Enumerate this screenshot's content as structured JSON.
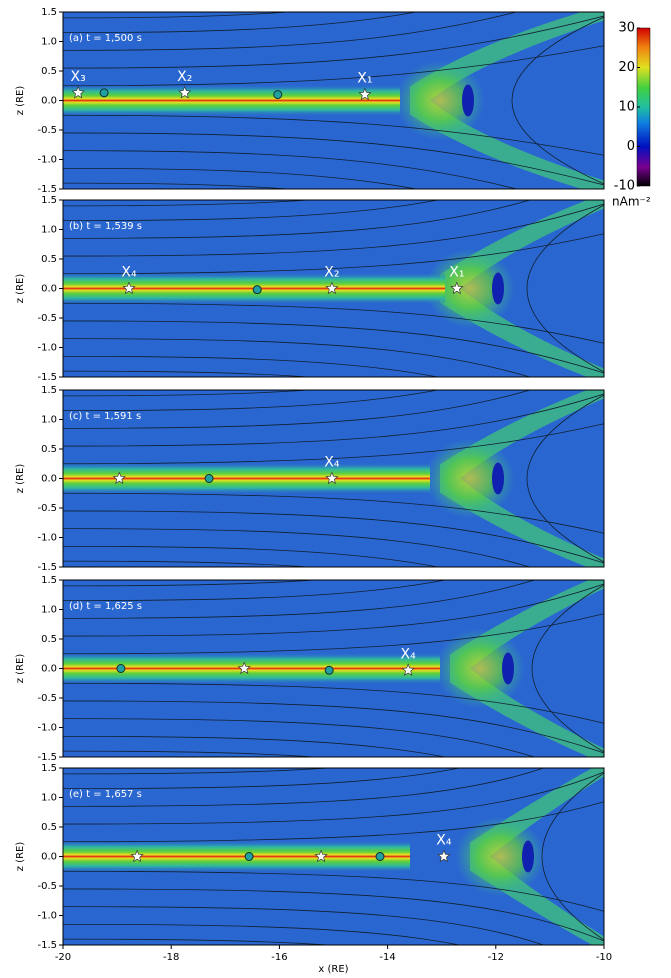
{
  "chart_data": [
    {
      "type": "field",
      "label": "(a) t = 1,500 s",
      "ylabel": "z (RE)",
      "xlim": [
        -20,
        -10
      ],
      "ylim": [
        -1.5,
        1.5
      ],
      "yticks": [
        {
          "value": -1.5,
          "label": "-1.5"
        },
        {
          "value": -1,
          "label": "-1.0"
        },
        {
          "value": -0.5,
          "label": "-0.5"
        },
        {
          "value": 0,
          "label": "0.0"
        },
        {
          "value": 0.5,
          "label": "0.5"
        },
        {
          "value": 1,
          "label": "1.0"
        },
        {
          "value": 1.5,
          "label": "1.5"
        }
      ],
      "stars": {
        "x": [
          -19.72,
          -17.75,
          -14.42
        ],
        "y": [
          0.13,
          0.13,
          0.1
        ],
        "labels": [
          "X₃",
          "X₂",
          "X₁"
        ]
      },
      "circles": {
        "x": [
          -19.24,
          -16.03
        ],
        "y": [
          0.13,
          0.1
        ]
      },
      "colorbar": {
        "lim": [
          -10,
          30
        ],
        "ticks": [
          30,
          20,
          10,
          0,
          -10
        ],
        "label": "nAm⁻²"
      }
    },
    {
      "type": "field",
      "label": "(b) t = 1,539 s",
      "ylabel": "z (RE)",
      "xlim": [
        -20,
        -10
      ],
      "ylim": [
        -1.5,
        1.5
      ],
      "yticks": [
        {
          "value": -1.5,
          "label": "-1.5"
        },
        {
          "value": -1,
          "label": "-1.0"
        },
        {
          "value": -0.5,
          "label": "-0.5"
        },
        {
          "value": 0,
          "label": "0.0"
        },
        {
          "value": 0.5,
          "label": "0.5"
        },
        {
          "value": 1,
          "label": "1.0"
        },
        {
          "value": 1.5,
          "label": "1.5"
        }
      ],
      "stars": {
        "x": [
          -18.78,
          -15.03,
          -12.72
        ],
        "y": [
          0,
          0,
          0
        ],
        "labels": [
          "X₄",
          "X₂",
          "X₁"
        ]
      },
      "circles": {
        "x": [
          -16.41
        ],
        "y": [
          -0.02
        ]
      }
    },
    {
      "type": "field",
      "label": "(c) t = 1,591 s",
      "ylabel": "z (RE)",
      "xlim": [
        -20,
        -10
      ],
      "ylim": [
        -1.5,
        1.5
      ],
      "yticks": [
        {
          "value": -1.5,
          "label": "-1.5"
        },
        {
          "value": -1,
          "label": "-1.0"
        },
        {
          "value": -0.5,
          "label": "-0.5"
        },
        {
          "value": 0,
          "label": "0.0"
        },
        {
          "value": 0.5,
          "label": "0.5"
        },
        {
          "value": 1,
          "label": "1.0"
        },
        {
          "value": 1.5,
          "label": "1.5"
        }
      ],
      "stars": {
        "x": [
          -18.96,
          -15.03
        ],
        "y": [
          0,
          0
        ],
        "labels": [
          null,
          "X₄"
        ]
      },
      "circles": {
        "x": [
          -17.3
        ],
        "y": [
          0
        ]
      }
    },
    {
      "type": "field",
      "label": "(d) t = 1,625 s",
      "ylabel": "z (RE)",
      "xlim": [
        -20,
        -10
      ],
      "ylim": [
        -1.5,
        1.5
      ],
      "yticks": [
        {
          "value": -1.5,
          "label": "-1.5"
        },
        {
          "value": -1,
          "label": "-1.0"
        },
        {
          "value": -0.5,
          "label": "-0.5"
        },
        {
          "value": 0,
          "label": "0.0"
        },
        {
          "value": 0.5,
          "label": "0.5"
        },
        {
          "value": 1,
          "label": "1.0"
        },
        {
          "value": 1.5,
          "label": "1.5"
        }
      ],
      "stars": {
        "x": [
          -16.65,
          -13.62
        ],
        "y": [
          0,
          -0.03
        ],
        "labels": [
          null,
          "X₄"
        ]
      },
      "circles": {
        "x": [
          -18.93,
          -15.08
        ],
        "y": [
          0,
          -0.03
        ]
      }
    },
    {
      "type": "field",
      "label": "(e) t = 1,657 s",
      "ylabel": "z (RE)",
      "xlabel": "x (RE)",
      "xlim": [
        -20,
        -10
      ],
      "ylim": [
        -1.5,
        1.5
      ],
      "xticks": [
        -20,
        -18,
        -16,
        -14,
        -12,
        -10
      ],
      "yticks": [
        {
          "value": -1.5,
          "label": "-1.5"
        },
        {
          "value": -1,
          "label": "-1.0"
        },
        {
          "value": -0.5,
          "label": "-0.5"
        },
        {
          "value": 0,
          "label": "0.0"
        },
        {
          "value": 0.5,
          "label": "0.5"
        },
        {
          "value": 1,
          "label": "1.0"
        },
        {
          "value": 1.5,
          "label": "1.5"
        }
      ],
      "stars": {
        "x": [
          -18.63,
          -15.23,
          -12.96
        ],
        "y": [
          0,
          0,
          0
        ],
        "labels": [
          null,
          null,
          "X₄"
        ]
      },
      "circles": {
        "x": [
          -16.56,
          -14.14
        ],
        "y": [
          0,
          0
        ]
      }
    }
  ]
}
